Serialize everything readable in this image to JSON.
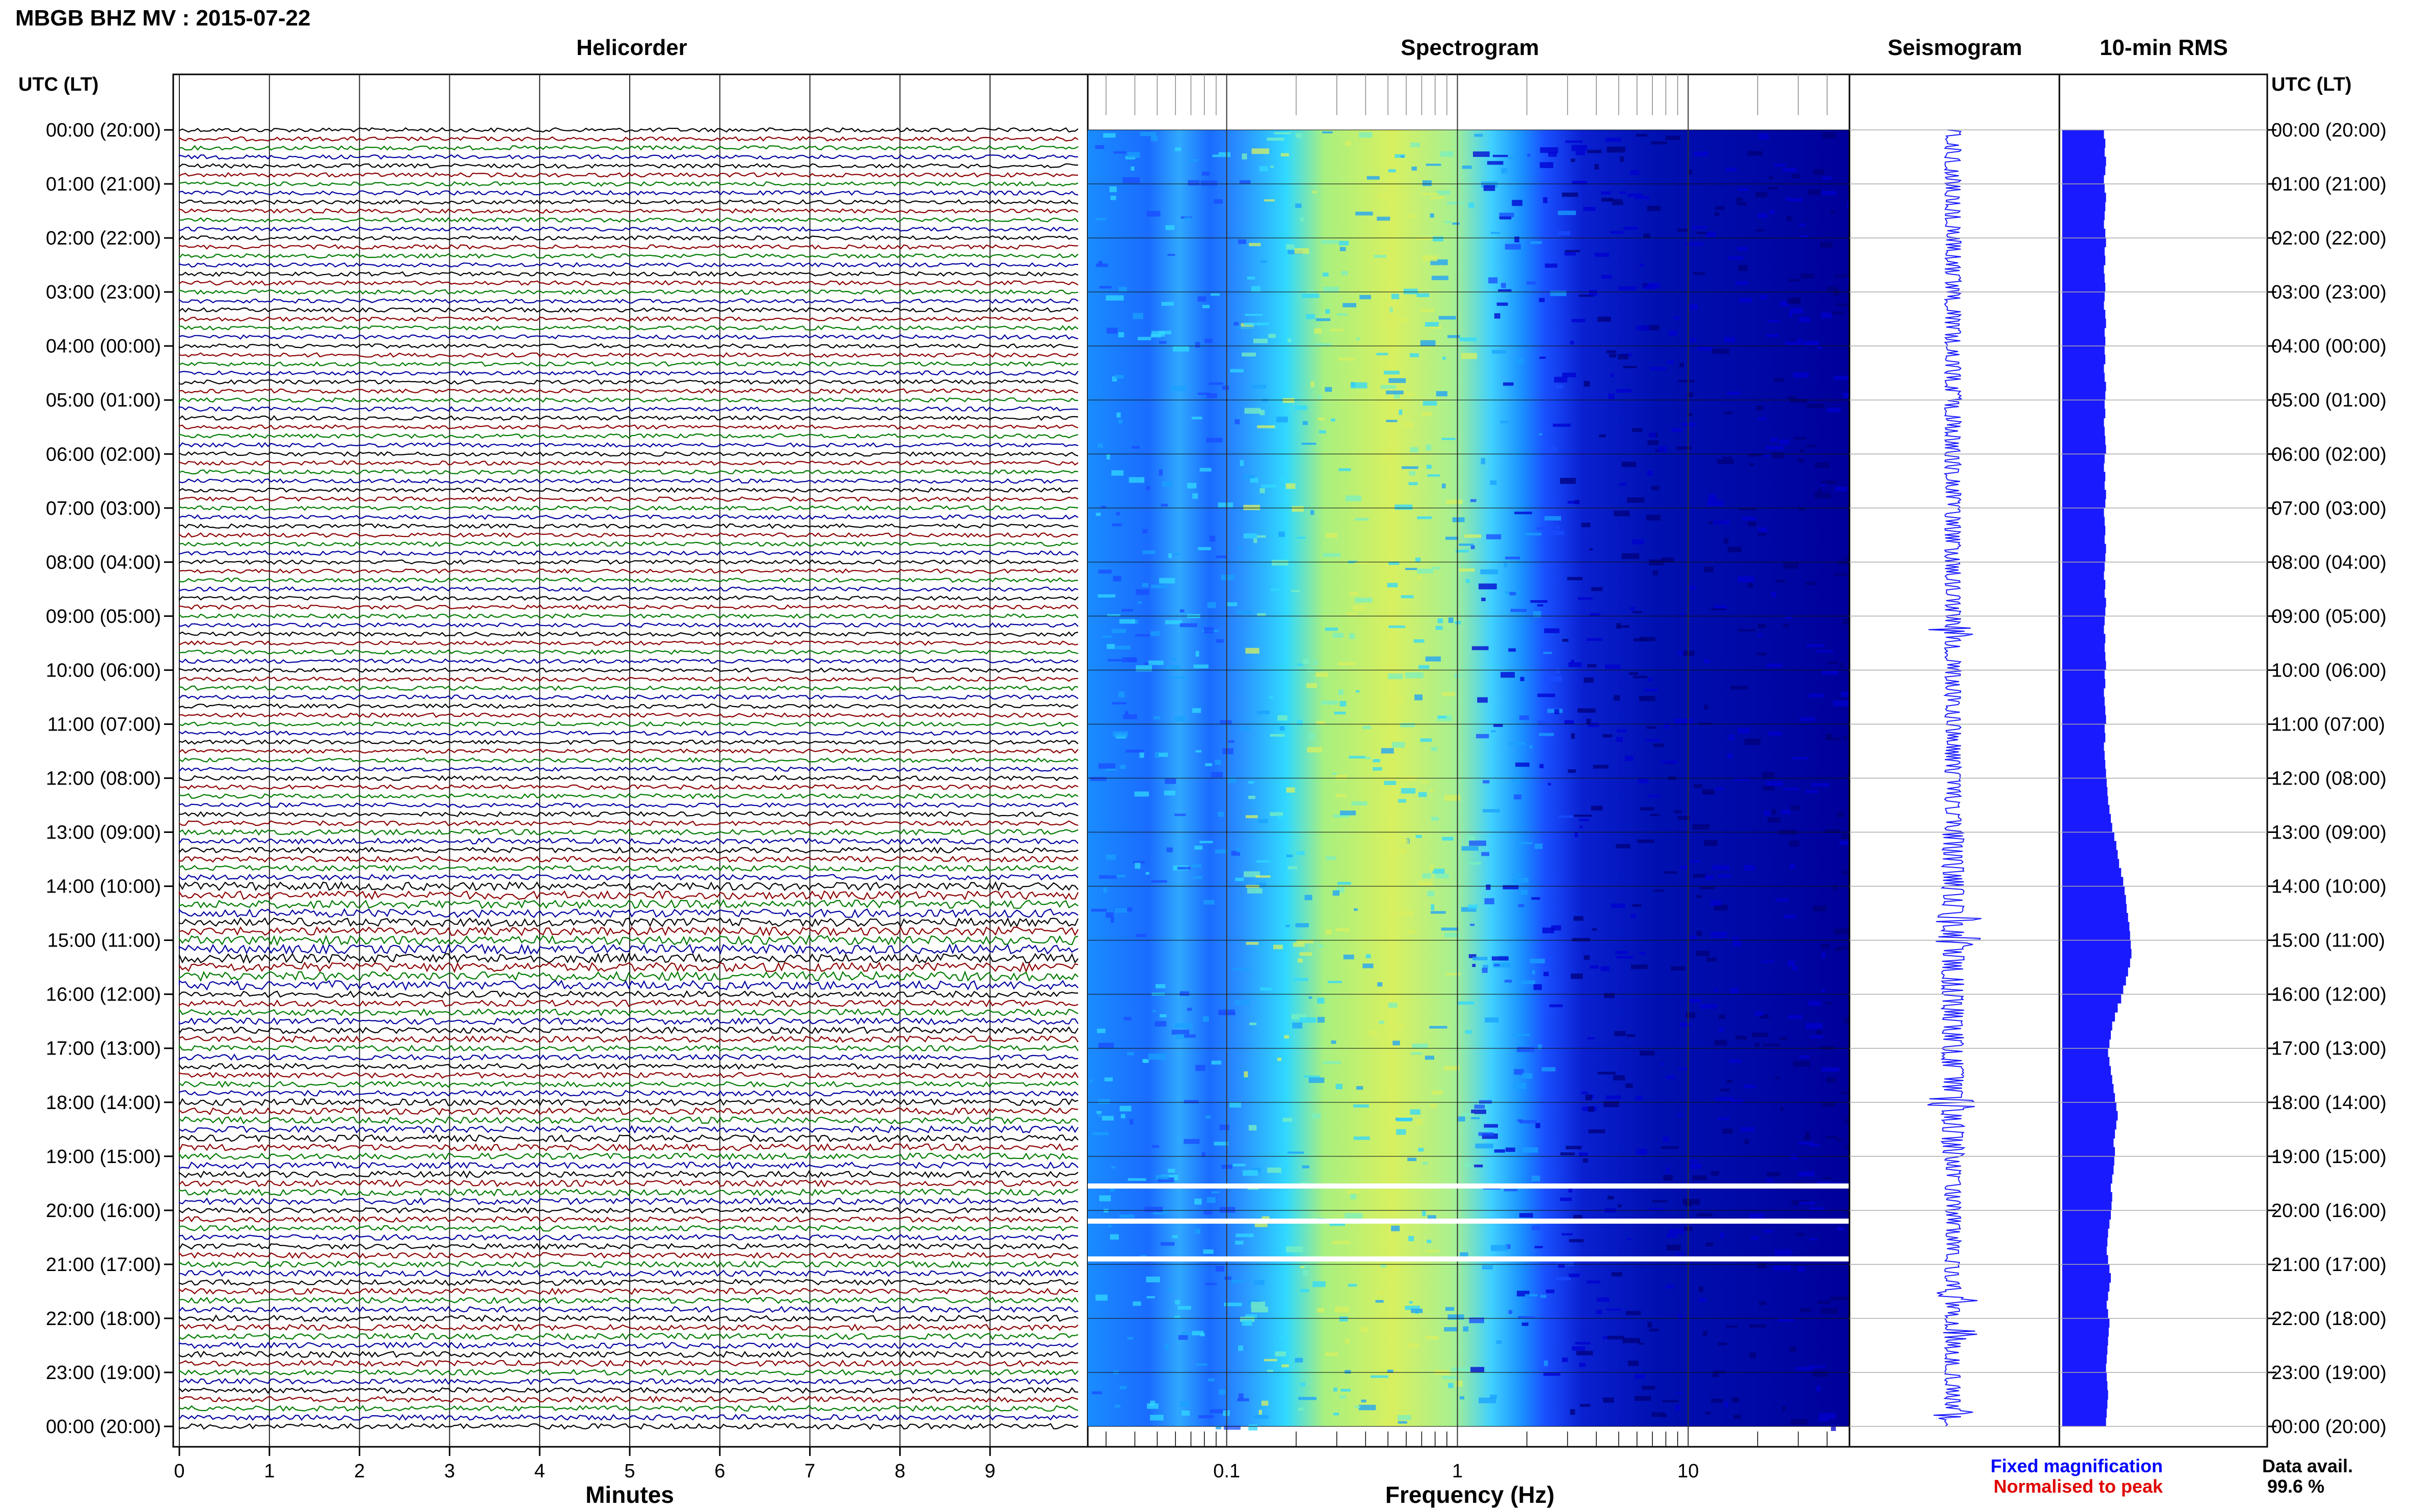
{
  "header": {
    "station_title": "MBGB BHZ MV : 2015-07-22"
  },
  "panels": {
    "helicorder_title": "Helicorder",
    "spectrogram_title": "Spectrogram",
    "seismogram_title": "Seismogram",
    "rms_title": "10-min RMS",
    "left_axis_title": "UTC (LT)",
    "right_axis_title": "UTC (LT)"
  },
  "footer": {
    "legend_fixed": "Fixed magnification",
    "legend_normalised": "Normalised to peak",
    "data_avail_label": "Data avail.",
    "data_avail_value": "99.6 %"
  },
  "colors": {
    "trace_cycle": [
      "#000000",
      "#8b0000",
      "#007a00",
      "#0000a0"
    ],
    "seismogram": "#1a1aff",
    "rms_fill": "#1a1aff",
    "legend_fixed": "#0000ff",
    "legend_normalised": "#e00000",
    "spectrogram_colormap": [
      "#00007a",
      "#0000d0",
      "#1a4cff",
      "#1aa0ff",
      "#30d8ff",
      "#7af0c0",
      "#d8f060"
    ]
  },
  "chart_data": {
    "type": "heatmap",
    "time_ticks": [
      "00:00 (20:00)",
      "01:00 (21:00)",
      "02:00 (22:00)",
      "03:00 (23:00)",
      "04:00 (00:00)",
      "05:00 (01:00)",
      "06:00 (02:00)",
      "07:00 (03:00)",
      "08:00 (04:00)",
      "09:00 (05:00)",
      "10:00 (06:00)",
      "11:00 (07:00)",
      "12:00 (08:00)",
      "13:00 (09:00)",
      "14:00 (10:00)",
      "15:00 (11:00)",
      "16:00 (12:00)",
      "17:00 (13:00)",
      "18:00 (14:00)",
      "19:00 (15:00)",
      "20:00 (16:00)",
      "21:00 (17:00)",
      "22:00 (18:00)",
      "23:00 (19:00)",
      "00:00 (20:00)"
    ],
    "helicorder": {
      "xlabel": "Minutes",
      "x_ticks": [
        "0",
        "1",
        "2",
        "3",
        "4",
        "5",
        "6",
        "7",
        "8",
        "9"
      ],
      "xlim": [
        0,
        10
      ],
      "lines_per_hour": 6,
      "trace_amplitude": [
        1.0,
        1.0,
        1.0,
        1.0,
        1.0,
        1.0,
        1.0,
        1.0,
        1.0,
        1.0,
        1.0,
        1.0,
        1.1,
        1.3,
        2.0,
        2.2,
        1.5,
        1.3,
        1.6,
        1.5,
        1.3,
        1.4,
        1.4,
        1.3
      ]
    },
    "spectrogram": {
      "xlabel": "Frequency (Hz)",
      "x_ticks": [
        "0.1",
        "1",
        "10"
      ],
      "x_scale": "log",
      "xlim": [
        0.025,
        50
      ],
      "gap_times_hours": [
        19.55,
        20.2,
        20.9
      ]
    },
    "seismogram": {
      "events_hours": [
        9.3,
        14.6,
        15.0,
        18.0,
        21.6,
        22.3,
        23.8
      ]
    },
    "rms": {
      "values_10min": [
        0.6,
        0.62,
        0.61,
        0.63,
        0.62,
        0.6,
        0.61,
        0.63,
        0.62,
        0.61,
        0.6,
        0.62,
        0.63,
        0.61,
        0.62,
        0.6,
        0.61,
        0.62,
        0.61,
        0.6,
        0.62,
        0.63,
        0.61,
        0.62,
        0.61,
        0.62,
        0.6,
        0.61,
        0.63,
        0.62,
        0.61,
        0.62,
        0.6,
        0.61,
        0.62,
        0.63,
        0.61,
        0.6,
        0.62,
        0.61,
        0.63,
        0.62,
        0.6,
        0.61,
        0.62,
        0.61,
        0.63,
        0.62,
        0.61,
        0.6,
        0.62,
        0.61,
        0.63,
        0.62,
        0.61,
        0.6,
        0.62,
        0.61,
        0.62,
        0.63,
        0.61,
        0.62,
        0.6,
        0.61,
        0.62,
        0.63,
        0.61,
        0.62,
        0.6,
        0.61,
        0.62,
        0.63,
        0.64,
        0.65,
        0.66,
        0.68,
        0.7,
        0.72,
        0.75,
        0.78,
        0.8,
        0.82,
        0.85,
        0.88,
        0.9,
        0.92,
        0.93,
        0.95,
        0.97,
        0.98,
        0.99,
        1.0,
        0.98,
        0.95,
        0.92,
        0.88,
        0.85,
        0.8,
        0.76,
        0.72,
        0.7,
        0.68,
        0.66,
        0.68,
        0.7,
        0.72,
        0.74,
        0.76,
        0.78,
        0.8,
        0.78,
        0.76,
        0.74,
        0.76,
        0.75,
        0.74,
        0.72,
        0.7,
        0.72,
        0.71,
        0.7,
        0.68,
        0.66,
        0.65,
        0.64,
        0.66,
        0.68,
        0.7,
        0.68,
        0.66,
        0.64,
        0.66,
        0.68,
        0.67,
        0.66,
        0.65,
        0.64,
        0.63,
        0.64,
        0.65,
        0.66,
        0.65,
        0.64,
        0.63
      ]
    }
  }
}
